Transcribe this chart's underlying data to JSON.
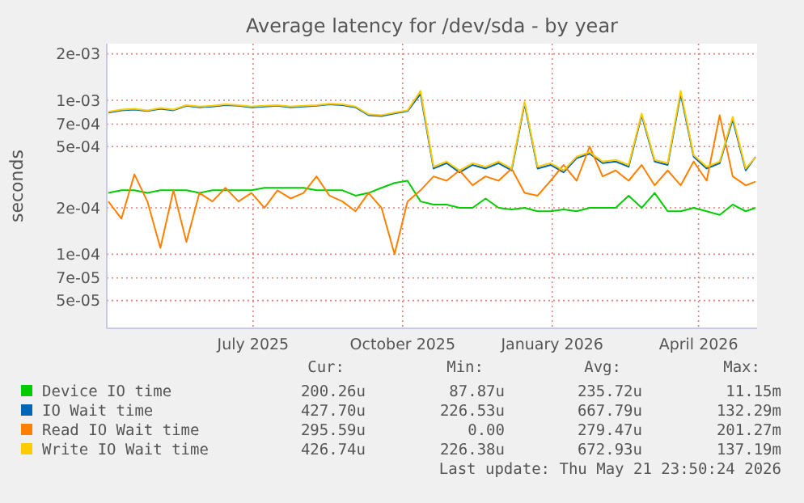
{
  "chart_data": {
    "type": "line",
    "title": "Average latency for /dev/sda - by year",
    "ylabel": "seconds",
    "log": true,
    "grid": true,
    "legend": "bottom",
    "marker": "none",
    "line_style": "solid",
    "x": [
      "2025-04-17",
      "2025-04-25",
      "2025-05-03",
      "2025-05-11",
      "2025-05-19",
      "2025-05-27",
      "2025-06-04",
      "2025-06-12",
      "2025-06-20",
      "2025-06-28",
      "2025-07-06",
      "2025-07-14",
      "2025-07-22",
      "2025-07-30",
      "2025-08-07",
      "2025-08-15",
      "2025-08-23",
      "2025-08-31",
      "2025-09-08",
      "2025-09-16",
      "2025-09-24",
      "2025-10-02",
      "2025-10-10",
      "2025-10-18",
      "2025-10-26",
      "2025-11-03",
      "2025-11-11",
      "2025-11-19",
      "2025-11-27",
      "2025-12-05",
      "2025-12-13",
      "2025-12-21",
      "2025-12-29",
      "2026-01-06",
      "2026-01-14",
      "2026-01-22",
      "2026-01-30",
      "2026-02-07",
      "2026-02-15",
      "2026-02-23",
      "2026-03-03",
      "2026-03-11",
      "2026-03-19",
      "2026-03-27",
      "2026-04-04",
      "2026-04-12",
      "2026-04-20",
      "2026-04-28",
      "2026-05-06",
      "2026-05-14",
      "2026-05-20"
    ],
    "xlim": [
      "2025-04-16",
      "2026-05-21"
    ],
    "xticks": [
      {
        "value": "2025-07-15",
        "label": "July 2025"
      },
      {
        "value": "2025-10-15",
        "label": "October 2025"
      },
      {
        "value": "2026-01-15",
        "label": "January 2026"
      },
      {
        "value": "2026-04-15",
        "label": "April 2026"
      }
    ],
    "ylim": [
      3.3e-05,
      0.00233
    ],
    "yticks": [
      {
        "value": 0.002,
        "label": "2e-03"
      },
      {
        "value": 0.001,
        "label": "1e-03"
      },
      {
        "value": 0.0007,
        "label": "7e-04"
      },
      {
        "value": 0.0005,
        "label": "5e-04"
      },
      {
        "value": 0.0002,
        "label": "2e-04"
      },
      {
        "value": 0.0001,
        "label": "1e-04"
      },
      {
        "value": 7e-05,
        "label": "7e-05"
      },
      {
        "value": 5e-05,
        "label": "5e-05"
      }
    ],
    "series": [
      {
        "name": "Device IO time",
        "color": "#00cc00",
        "values": [
          0.00025,
          0.00026,
          0.00026,
          0.00025,
          0.00026,
          0.00026,
          0.00026,
          0.00025,
          0.00026,
          0.00026,
          0.00026,
          0.00026,
          0.00027,
          0.00027,
          0.00027,
          0.00027,
          0.00026,
          0.00026,
          0.00026,
          0.00024,
          0.00025,
          0.00027,
          0.00029,
          0.0003,
          0.00022,
          0.00021,
          0.00021,
          0.0002,
          0.0002,
          0.00023,
          0.0002,
          0.000195,
          0.0002,
          0.00019,
          0.00019,
          0.000195,
          0.00019,
          0.0002,
          0.0002,
          0.0002,
          0.00024,
          0.0002,
          0.00025,
          0.00019,
          0.00019,
          0.0002,
          0.00019,
          0.00018,
          0.00021,
          0.00019,
          0.0002
        ]
      },
      {
        "name": "IO Wait time",
        "color": "#0066b3",
        "values": [
          0.00083,
          0.00086,
          0.00087,
          0.00085,
          0.00088,
          0.00086,
          0.00092,
          0.0009,
          0.00091,
          0.00093,
          0.00092,
          0.0009,
          0.00091,
          0.00092,
          0.0009,
          0.00091,
          0.00092,
          0.00094,
          0.00093,
          0.0009,
          0.0008,
          0.00079,
          0.00082,
          0.00085,
          0.0011,
          0.00036,
          0.00039,
          0.00034,
          0.00038,
          0.00036,
          0.00039,
          0.00035,
          0.00095,
          0.00036,
          0.00038,
          0.00034,
          0.00042,
          0.00045,
          0.00039,
          0.0004,
          0.00037,
          0.0008,
          0.0004,
          0.00038,
          0.0011,
          0.00043,
          0.00036,
          0.00039,
          0.00075,
          0.00035,
          0.000428
        ]
      },
      {
        "name": "Read IO Wait time",
        "color": "#ff8000",
        "values": [
          0.00022,
          0.00017,
          0.00033,
          0.00022,
          0.00011,
          0.00026,
          0.00012,
          0.00025,
          0.00022,
          0.00027,
          0.00022,
          0.00025,
          0.0002,
          0.00026,
          0.00023,
          0.00025,
          0.00032,
          0.00024,
          0.00022,
          0.00019,
          0.00025,
          0.0002,
          0.0001,
          0.00022,
          0.00026,
          0.00032,
          0.0003,
          0.00035,
          0.00028,
          0.00032,
          0.0003,
          0.00036,
          0.00025,
          0.00024,
          0.0003,
          0.00038,
          0.0003,
          0.0005,
          0.00032,
          0.00035,
          0.0003,
          0.00038,
          0.00028,
          0.00035,
          0.00028,
          0.0004,
          0.0003,
          0.0008,
          0.00032,
          0.00028,
          0.000296
        ]
      },
      {
        "name": "Write IO Wait time",
        "color": "#ffcc00",
        "values": [
          0.00084,
          0.00087,
          0.00088,
          0.00086,
          0.00089,
          0.00087,
          0.00093,
          0.00091,
          0.00092,
          0.00094,
          0.00093,
          0.00091,
          0.00092,
          0.00093,
          0.00091,
          0.00092,
          0.00093,
          0.00095,
          0.00094,
          0.00091,
          0.00081,
          0.0008,
          0.00083,
          0.00086,
          0.00115,
          0.00037,
          0.0004,
          0.00035,
          0.00039,
          0.00037,
          0.0004,
          0.00036,
          0.00098,
          0.00037,
          0.00039,
          0.00035,
          0.00043,
          0.00046,
          0.0004,
          0.00041,
          0.00038,
          0.00082,
          0.00041,
          0.00039,
          0.00115,
          0.00044,
          0.00037,
          0.0004,
          0.00078,
          0.00036,
          0.000427
        ]
      }
    ],
    "annotations": [
      "Cur:",
      "Min:",
      "Avg:",
      "Max:",
      "200.26u",
      "87.87u",
      "235.72u",
      "11.15m",
      "427.70u",
      "226.53u",
      "667.79u",
      "132.29m",
      "295.59u",
      "0.00",
      "279.47u",
      "201.27m",
      "426.74u",
      "226.38u",
      "672.93u",
      "137.19m",
      "Last update: Thu May 21 23:50:24 2026"
    ]
  }
}
